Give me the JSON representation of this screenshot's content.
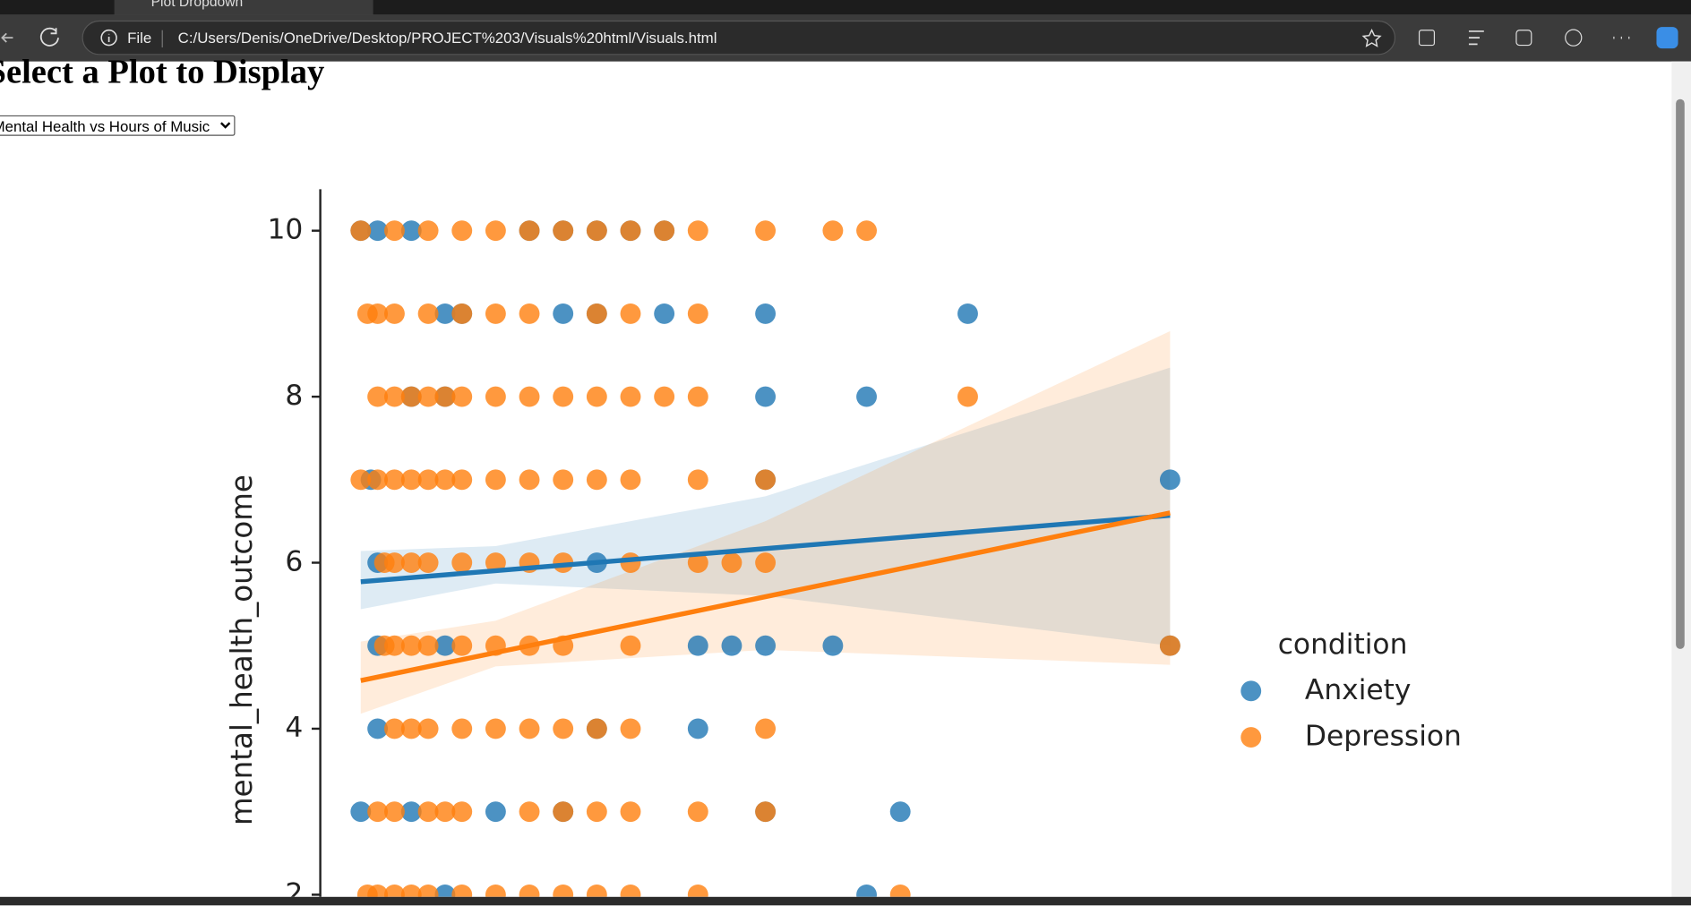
{
  "browser": {
    "tab_title": "Plot Dropdown",
    "scheme": "File",
    "url": "C:/Users/Denis/OneDrive/Desktop/PROJECT%203/Visuals%20html/Visuals.html"
  },
  "page": {
    "heading": "Select a Plot to Display",
    "selected_option": "Mental Health vs Hours of Music"
  },
  "chart_data": {
    "type": "scatter",
    "y_label": "mental_health_outcome",
    "legend_title": "condition",
    "xlim": [
      -1.2,
      24.5
    ],
    "ylim": [
      1.8,
      10.5
    ],
    "yticks": [
      2,
      4,
      6,
      8,
      10
    ],
    "series": [
      {
        "name": "Anxiety",
        "color": "#1f77b4",
        "x": [
          0,
          0.5,
          1.5,
          5,
          6,
          7,
          8,
          9,
          2.5,
          6,
          9,
          12,
          18,
          3,
          7,
          1.5,
          2.5,
          12,
          15,
          0.3,
          12,
          24,
          0.5,
          7,
          0.5,
          2.5,
          10,
          11,
          12,
          14,
          24,
          0.5,
          7,
          10,
          0,
          1.5,
          4,
          6,
          16,
          12,
          2.5,
          15
        ],
        "values": [
          10,
          10,
          10,
          10,
          10,
          10,
          10,
          10,
          9,
          9,
          9,
          9,
          9,
          9,
          9,
          8,
          8,
          8,
          8,
          7,
          7,
          7,
          6,
          6,
          5,
          5,
          5,
          5,
          5,
          5,
          5,
          4,
          4,
          4,
          3,
          3,
          3,
          3,
          3,
          3,
          2,
          2
        ],
        "fit_x": [
          0,
          24
        ],
        "fit_values": [
          5.77,
          6.57
        ],
        "ci_x": [
          0,
          4,
          12,
          24
        ],
        "ci_lower": [
          5.44,
          5.75,
          5.6,
          5.0
        ],
        "ci_upper": [
          6.14,
          6.2,
          6.8,
          8.35
        ]
      },
      {
        "name": "Depression",
        "color": "#ff7f0e",
        "x": [
          0,
          1,
          2,
          3,
          4,
          5,
          6,
          7,
          8,
          9,
          10,
          12,
          14,
          15,
          0.2,
          0.5,
          1,
          2,
          3,
          4,
          5,
          7,
          8,
          10,
          0.5,
          1,
          1.5,
          2,
          2.5,
          3,
          4,
          5,
          6,
          7,
          8,
          9,
          10,
          18,
          0,
          0.5,
          1,
          1.5,
          2,
          2.5,
          3,
          4,
          5,
          6,
          7,
          8,
          10,
          12,
          0.7,
          1,
          1.5,
          2,
          3,
          4,
          5,
          6,
          8,
          10,
          11,
          12,
          0.7,
          1,
          1.5,
          2,
          3,
          4,
          5,
          6,
          8,
          24,
          1,
          1.5,
          2,
          3,
          4,
          5,
          6,
          7,
          8,
          12,
          0.5,
          1,
          2,
          2.5,
          3,
          5,
          6,
          7,
          8,
          10,
          12,
          0.2,
          0.5,
          1,
          1.5,
          2,
          3,
          4,
          5,
          6,
          7,
          8,
          10,
          16
        ],
        "values": [
          10,
          10,
          10,
          10,
          10,
          10,
          10,
          10,
          10,
          10,
          10,
          10,
          10,
          10,
          9,
          9,
          9,
          9,
          9,
          9,
          9,
          9,
          9,
          9,
          8,
          8,
          8,
          8,
          8,
          8,
          8,
          8,
          8,
          8,
          8,
          8,
          8,
          8,
          7,
          7,
          7,
          7,
          7,
          7,
          7,
          7,
          7,
          7,
          7,
          7,
          7,
          7,
          6,
          6,
          6,
          6,
          6,
          6,
          6,
          6,
          6,
          6,
          6,
          6,
          5,
          5,
          5,
          5,
          5,
          5,
          5,
          5,
          5,
          5,
          4,
          4,
          4,
          4,
          4,
          4,
          4,
          4,
          4,
          4,
          3,
          3,
          3,
          3,
          3,
          3,
          3,
          3,
          3,
          3,
          3,
          2,
          2,
          2,
          2,
          2,
          2,
          2,
          2,
          2,
          2,
          2,
          2,
          2
        ],
        "fit_x": [
          0,
          24
        ],
        "fit_values": [
          4.58,
          6.6
        ],
        "ci_x": [
          0,
          4,
          12,
          24
        ],
        "ci_lower": [
          4.18,
          4.75,
          4.95,
          4.77
        ],
        "ci_upper": [
          5.05,
          5.3,
          6.5,
          8.79
        ]
      }
    ]
  }
}
